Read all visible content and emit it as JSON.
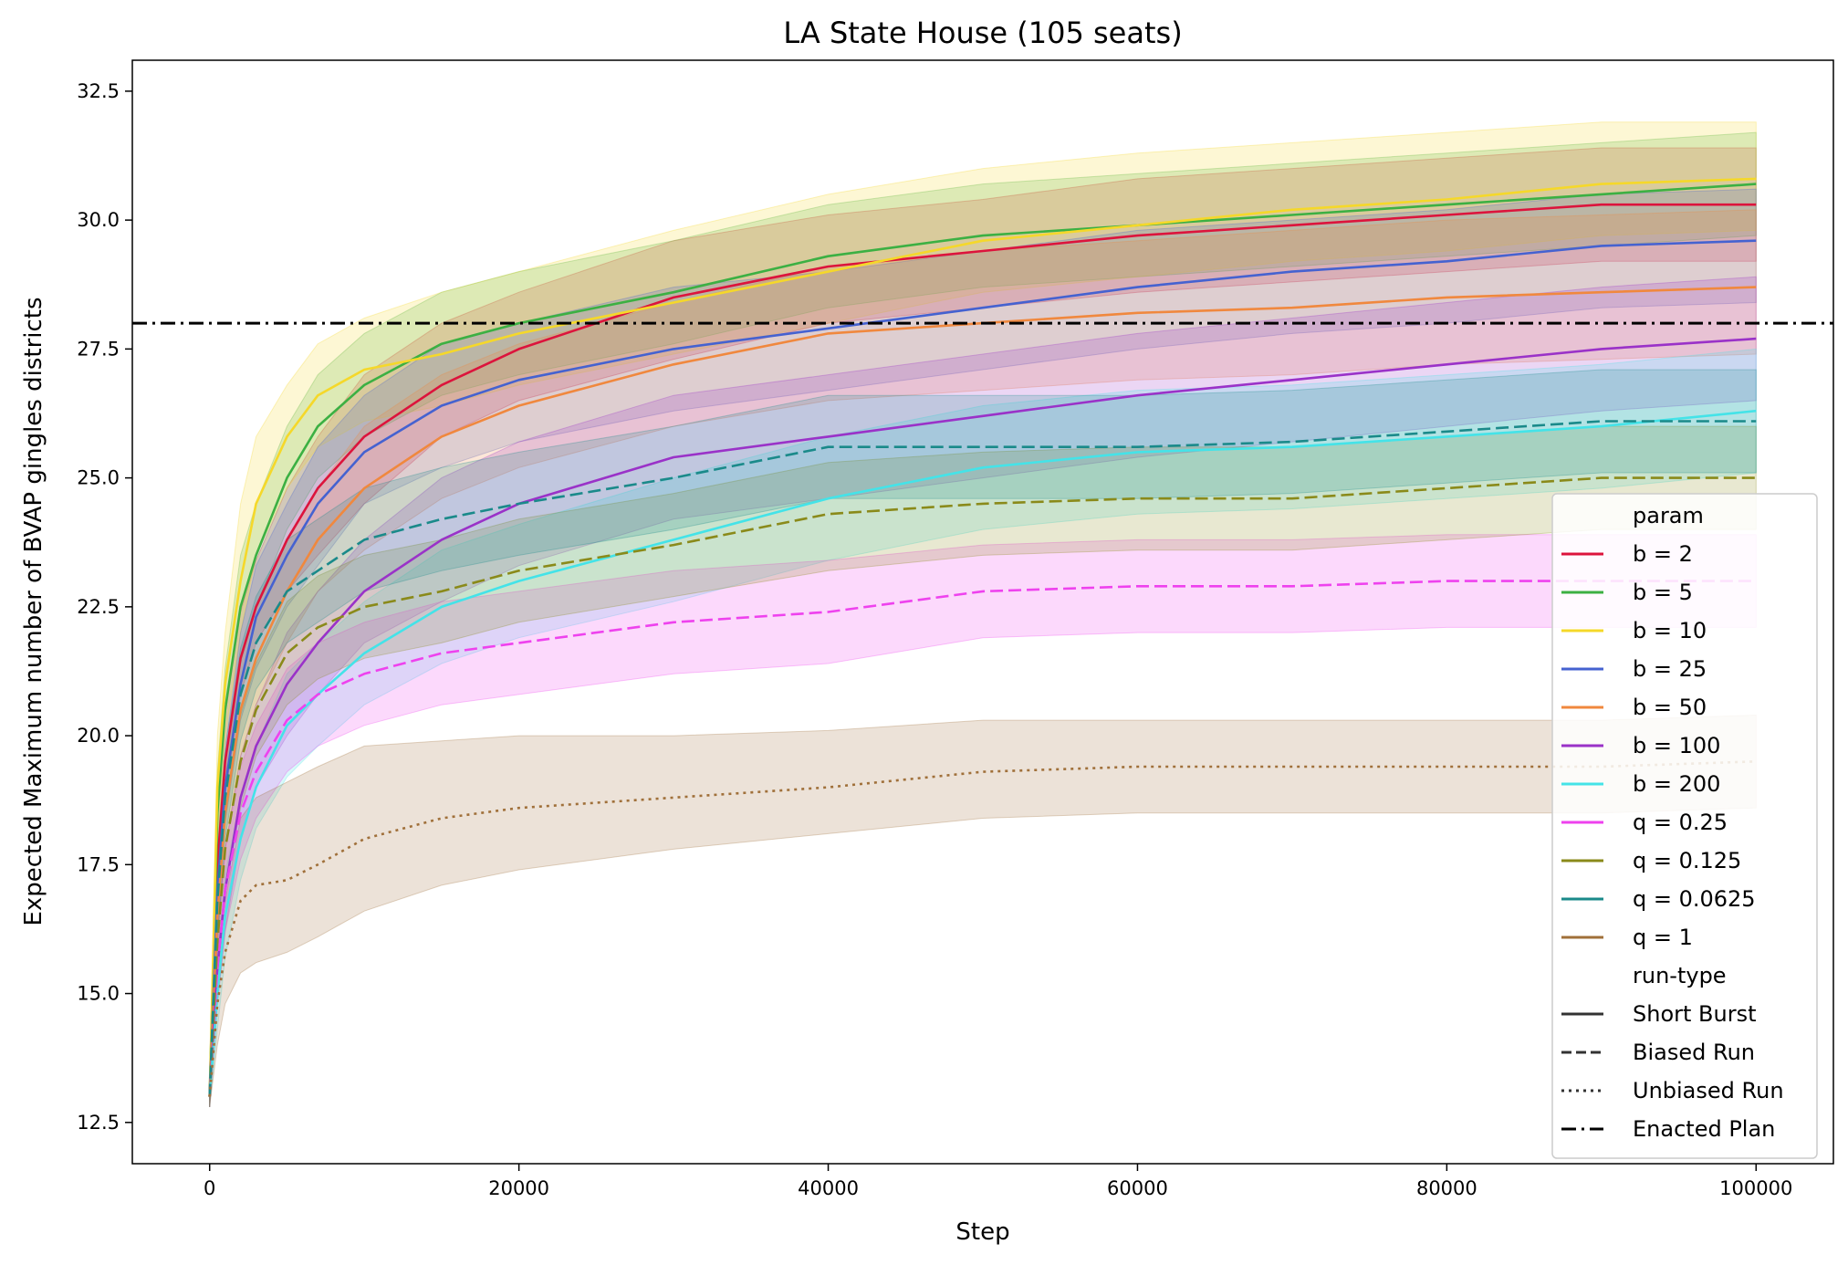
{
  "chart_data": {
    "type": "line",
    "title": "LA State House (105 seats)",
    "xlabel": "Step",
    "ylabel": "Expected Maximum number of BVAP gingles districts",
    "xlim": [
      -5000,
      105000
    ],
    "ylim": [
      11.7,
      33.1
    ],
    "xticks": [
      0,
      20000,
      40000,
      60000,
      80000,
      100000
    ],
    "yticks": [
      12.5,
      15.0,
      17.5,
      20.0,
      22.5,
      25.0,
      27.5,
      30.0,
      32.5
    ],
    "grid": false,
    "legend_position": "lower-right",
    "legend_title_param": "param",
    "legend_title_runtype": "run-type",
    "reference_line": {
      "name": "Enacted Plan",
      "y": 28.0,
      "color": "#000000",
      "style": "dashdot"
    },
    "run_types": [
      {
        "name": "Short Burst",
        "style": "solid"
      },
      {
        "name": "Biased Run",
        "style": "dashed"
      },
      {
        "name": "Unbiased Run",
        "style": "dotted"
      },
      {
        "name": "Enacted Plan",
        "style": "dashdot"
      }
    ],
    "series": [
      {
        "name": "b = 2",
        "color": "#dc143c",
        "style": "solid",
        "x": [
          0,
          500,
          1000,
          2000,
          3000,
          5000,
          7000,
          10000,
          15000,
          20000,
          30000,
          40000,
          50000,
          60000,
          70000,
          80000,
          90000,
          100000
        ],
        "y": [
          13.0,
          17.5,
          19.5,
          21.5,
          22.5,
          23.8,
          24.8,
          25.8,
          26.8,
          27.5,
          28.5,
          29.1,
          29.4,
          29.7,
          29.9,
          30.1,
          30.3,
          30.3
        ],
        "lo": [
          12.8,
          16.8,
          18.8,
          20.8,
          21.8,
          22.8,
          23.5,
          24.5,
          25.8,
          26.5,
          27.3,
          28.0,
          28.3,
          28.6,
          28.8,
          29.0,
          29.2,
          29.2
        ],
        "hi": [
          13.2,
          18.4,
          20.4,
          22.4,
          23.4,
          24.8,
          25.8,
          27.0,
          28.0,
          28.6,
          29.6,
          30.1,
          30.4,
          30.8,
          31.0,
          31.2,
          31.4,
          31.4
        ]
      },
      {
        "name": "b = 5",
        "color": "#3cb043",
        "style": "solid",
        "x": [
          0,
          500,
          1000,
          2000,
          3000,
          5000,
          7000,
          10000,
          15000,
          20000,
          30000,
          40000,
          50000,
          60000,
          70000,
          80000,
          90000,
          100000
        ],
        "y": [
          13.0,
          18.5,
          20.5,
          22.5,
          23.5,
          25.0,
          26.0,
          26.8,
          27.6,
          28.0,
          28.6,
          29.3,
          29.7,
          29.9,
          30.1,
          30.3,
          30.5,
          30.7
        ],
        "lo": [
          12.8,
          17.8,
          19.8,
          21.5,
          22.5,
          24.0,
          25.0,
          25.8,
          26.6,
          27.0,
          27.6,
          28.3,
          28.7,
          28.9,
          29.1,
          29.3,
          29.5,
          29.7
        ],
        "hi": [
          13.2,
          19.3,
          21.3,
          23.5,
          24.5,
          26.0,
          27.0,
          27.8,
          28.6,
          29.0,
          29.6,
          30.3,
          30.7,
          30.9,
          31.1,
          31.3,
          31.5,
          31.7
        ]
      },
      {
        "name": "b = 10",
        "color": "#f5d82a",
        "style": "solid",
        "x": [
          0,
          500,
          1000,
          2000,
          3000,
          5000,
          7000,
          10000,
          15000,
          20000,
          30000,
          40000,
          50000,
          60000,
          70000,
          80000,
          90000,
          100000
        ],
        "y": [
          13.0,
          19.0,
          21.0,
          23.0,
          24.5,
          25.8,
          26.6,
          27.1,
          27.4,
          27.8,
          28.4,
          29.0,
          29.6,
          29.9,
          30.2,
          30.4,
          30.7,
          30.8
        ],
        "lo": [
          12.8,
          18.0,
          20.0,
          22.0,
          23.5,
          24.8,
          25.6,
          26.1,
          26.4,
          26.8,
          27.4,
          28.0,
          28.6,
          28.9,
          29.2,
          29.4,
          29.7,
          29.8
        ],
        "hi": [
          13.2,
          20.0,
          22.0,
          24.5,
          25.8,
          26.8,
          27.6,
          28.1,
          28.6,
          29.0,
          29.8,
          30.5,
          31.0,
          31.3,
          31.5,
          31.7,
          31.9,
          31.9
        ]
      },
      {
        "name": "b = 25",
        "color": "#4562d0",
        "style": "solid",
        "x": [
          0,
          500,
          1000,
          2000,
          3000,
          5000,
          7000,
          10000,
          15000,
          20000,
          30000,
          40000,
          50000,
          60000,
          70000,
          80000,
          90000,
          100000
        ],
        "y": [
          13.0,
          17.0,
          19.0,
          21.0,
          22.3,
          23.5,
          24.5,
          25.5,
          26.4,
          26.9,
          27.5,
          27.9,
          28.3,
          28.7,
          29.0,
          29.2,
          29.5,
          29.6
        ],
        "lo": [
          12.8,
          16.3,
          18.3,
          20.3,
          21.3,
          22.5,
          23.3,
          24.5,
          25.2,
          25.7,
          26.3,
          26.7,
          27.1,
          27.5,
          27.8,
          28.0,
          28.3,
          28.4
        ],
        "hi": [
          13.2,
          17.7,
          19.7,
          22.0,
          23.3,
          24.5,
          25.6,
          26.6,
          27.6,
          28.0,
          28.7,
          29.0,
          29.4,
          29.8,
          30.0,
          30.2,
          30.5,
          30.6
        ]
      },
      {
        "name": "b = 50",
        "color": "#f0883e",
        "style": "solid",
        "x": [
          0,
          500,
          1000,
          2000,
          3000,
          5000,
          7000,
          10000,
          15000,
          20000,
          30000,
          40000,
          50000,
          60000,
          70000,
          80000,
          90000,
          100000
        ],
        "y": [
          13.0,
          16.5,
          18.5,
          20.5,
          21.5,
          22.8,
          23.8,
          24.8,
          25.8,
          26.4,
          27.2,
          27.8,
          28.0,
          28.2,
          28.3,
          28.5,
          28.6,
          28.7
        ],
        "lo": [
          12.8,
          15.8,
          17.8,
          19.6,
          20.6,
          21.8,
          22.8,
          23.6,
          24.6,
          25.2,
          26.0,
          26.5,
          26.7,
          26.9,
          27.0,
          27.2,
          27.3,
          27.4
        ],
        "hi": [
          13.2,
          17.2,
          19.2,
          21.4,
          22.5,
          23.8,
          24.8,
          26.0,
          27.0,
          27.6,
          28.4,
          29.1,
          29.4,
          29.6,
          29.8,
          30.0,
          30.1,
          30.2
        ]
      },
      {
        "name": "b = 100",
        "color": "#9a32c8",
        "style": "solid",
        "x": [
          0,
          500,
          1000,
          2000,
          3000,
          5000,
          7000,
          10000,
          15000,
          20000,
          30000,
          40000,
          50000,
          60000,
          70000,
          80000,
          90000,
          100000
        ],
        "y": [
          13.0,
          15.5,
          17.0,
          18.8,
          19.8,
          21.0,
          21.8,
          22.8,
          23.8,
          24.5,
          25.4,
          25.8,
          26.2,
          26.6,
          26.9,
          27.2,
          27.5,
          27.7
        ],
        "lo": [
          12.8,
          14.8,
          16.2,
          18.0,
          19.0,
          20.0,
          20.8,
          21.8,
          22.6,
          23.3,
          24.2,
          24.6,
          25.0,
          25.4,
          25.7,
          26.0,
          26.3,
          26.5
        ],
        "hi": [
          13.2,
          16.2,
          17.8,
          19.6,
          20.6,
          22.0,
          22.8,
          23.8,
          25.0,
          25.7,
          26.6,
          27.0,
          27.4,
          27.8,
          28.1,
          28.4,
          28.7,
          28.9
        ]
      },
      {
        "name": "b = 200",
        "color": "#44e3e8",
        "style": "solid",
        "x": [
          0,
          500,
          1000,
          2000,
          3000,
          5000,
          7000,
          10000,
          15000,
          20000,
          30000,
          40000,
          50000,
          60000,
          70000,
          80000,
          90000,
          100000
        ],
        "y": [
          13.0,
          15.0,
          16.5,
          18.0,
          19.0,
          20.2,
          20.8,
          21.6,
          22.5,
          23.0,
          23.8,
          24.6,
          25.2,
          25.5,
          25.6,
          25.8,
          26.0,
          26.3
        ],
        "lo": [
          12.8,
          14.3,
          15.7,
          17.2,
          18.2,
          19.2,
          19.8,
          20.6,
          21.4,
          21.9,
          22.6,
          23.4,
          24.0,
          24.3,
          24.4,
          24.6,
          24.8,
          25.1
        ],
        "hi": [
          13.2,
          15.7,
          17.3,
          18.8,
          19.8,
          21.2,
          21.8,
          22.6,
          23.6,
          24.1,
          25.0,
          25.8,
          26.4,
          26.7,
          26.8,
          27.0,
          27.2,
          27.5
        ]
      },
      {
        "name": "q = 0.25",
        "color": "#ee42ee",
        "style": "dashed",
        "x": [
          0,
          500,
          1000,
          2000,
          3000,
          5000,
          7000,
          10000,
          15000,
          20000,
          30000,
          40000,
          50000,
          60000,
          70000,
          80000,
          90000,
          100000
        ],
        "y": [
          13.0,
          15.5,
          17.0,
          18.5,
          19.3,
          20.3,
          20.8,
          21.2,
          21.6,
          21.8,
          22.2,
          22.4,
          22.8,
          22.9,
          22.9,
          23.0,
          23.0,
          23.0
        ],
        "lo": [
          12.8,
          14.8,
          16.2,
          17.6,
          18.4,
          19.3,
          19.8,
          20.2,
          20.6,
          20.8,
          21.2,
          21.4,
          21.9,
          22.0,
          22.0,
          22.1,
          22.1,
          22.1
        ],
        "hi": [
          13.2,
          16.2,
          17.8,
          19.4,
          20.2,
          21.3,
          21.8,
          22.2,
          22.6,
          22.8,
          23.2,
          23.4,
          23.7,
          23.8,
          23.8,
          23.9,
          23.9,
          23.9
        ]
      },
      {
        "name": "q = 0.125",
        "color": "#8a8a1a",
        "style": "dashed",
        "x": [
          0,
          500,
          1000,
          2000,
          3000,
          5000,
          7000,
          10000,
          15000,
          20000,
          30000,
          40000,
          50000,
          60000,
          70000,
          80000,
          90000,
          100000
        ],
        "y": [
          13.0,
          16.0,
          17.8,
          19.5,
          20.5,
          21.6,
          22.1,
          22.5,
          22.8,
          23.2,
          23.7,
          24.3,
          24.5,
          24.6,
          24.6,
          24.8,
          25.0,
          25.0
        ],
        "lo": [
          12.8,
          15.2,
          17.0,
          18.6,
          19.6,
          20.6,
          21.1,
          21.5,
          21.8,
          22.2,
          22.7,
          23.2,
          23.5,
          23.6,
          23.6,
          23.8,
          24.0,
          24.0
        ],
        "hi": [
          13.2,
          16.8,
          18.6,
          20.4,
          21.4,
          22.6,
          23.1,
          23.5,
          23.8,
          24.2,
          24.7,
          25.3,
          25.5,
          25.6,
          25.6,
          25.8,
          26.0,
          26.0
        ]
      },
      {
        "name": "q = 0.0625",
        "color": "#1a8a8a",
        "style": "dashed",
        "x": [
          0,
          500,
          1000,
          2000,
          3000,
          5000,
          7000,
          10000,
          15000,
          20000,
          30000,
          40000,
          50000,
          60000,
          70000,
          80000,
          90000,
          100000
        ],
        "y": [
          13.0,
          16.8,
          18.8,
          20.8,
          21.8,
          22.8,
          23.2,
          23.8,
          24.2,
          24.5,
          25.0,
          25.6,
          25.6,
          25.6,
          25.7,
          25.9,
          26.1,
          26.1
        ],
        "lo": [
          12.8,
          16.0,
          18.0,
          19.9,
          20.9,
          21.8,
          22.2,
          22.8,
          23.2,
          23.5,
          24.0,
          24.6,
          24.6,
          24.6,
          24.7,
          24.9,
          25.1,
          25.1
        ],
        "hi": [
          13.2,
          17.6,
          19.6,
          21.7,
          22.7,
          23.8,
          24.2,
          24.8,
          25.2,
          25.5,
          26.0,
          26.6,
          26.6,
          26.6,
          26.7,
          26.9,
          27.1,
          27.1
        ]
      },
      {
        "name": "q = 1",
        "color": "#a0703a",
        "style": "dotted",
        "x": [
          0,
          500,
          1000,
          2000,
          3000,
          5000,
          7000,
          10000,
          15000,
          20000,
          30000,
          40000,
          50000,
          60000,
          70000,
          80000,
          90000,
          100000
        ],
        "y": [
          13.0,
          14.8,
          15.8,
          16.8,
          17.1,
          17.2,
          17.5,
          18.0,
          18.4,
          18.6,
          18.8,
          19.0,
          19.3,
          19.4,
          19.4,
          19.4,
          19.4,
          19.5
        ],
        "lo": [
          12.8,
          14.0,
          14.8,
          15.4,
          15.6,
          15.8,
          16.1,
          16.6,
          17.1,
          17.4,
          17.8,
          18.1,
          18.4,
          18.5,
          18.5,
          18.5,
          18.5,
          18.6
        ],
        "hi": [
          13.2,
          15.6,
          16.8,
          18.4,
          18.8,
          19.1,
          19.4,
          19.8,
          19.9,
          20.0,
          20.0,
          20.1,
          20.3,
          20.3,
          20.3,
          20.3,
          20.3,
          20.4
        ]
      }
    ]
  }
}
